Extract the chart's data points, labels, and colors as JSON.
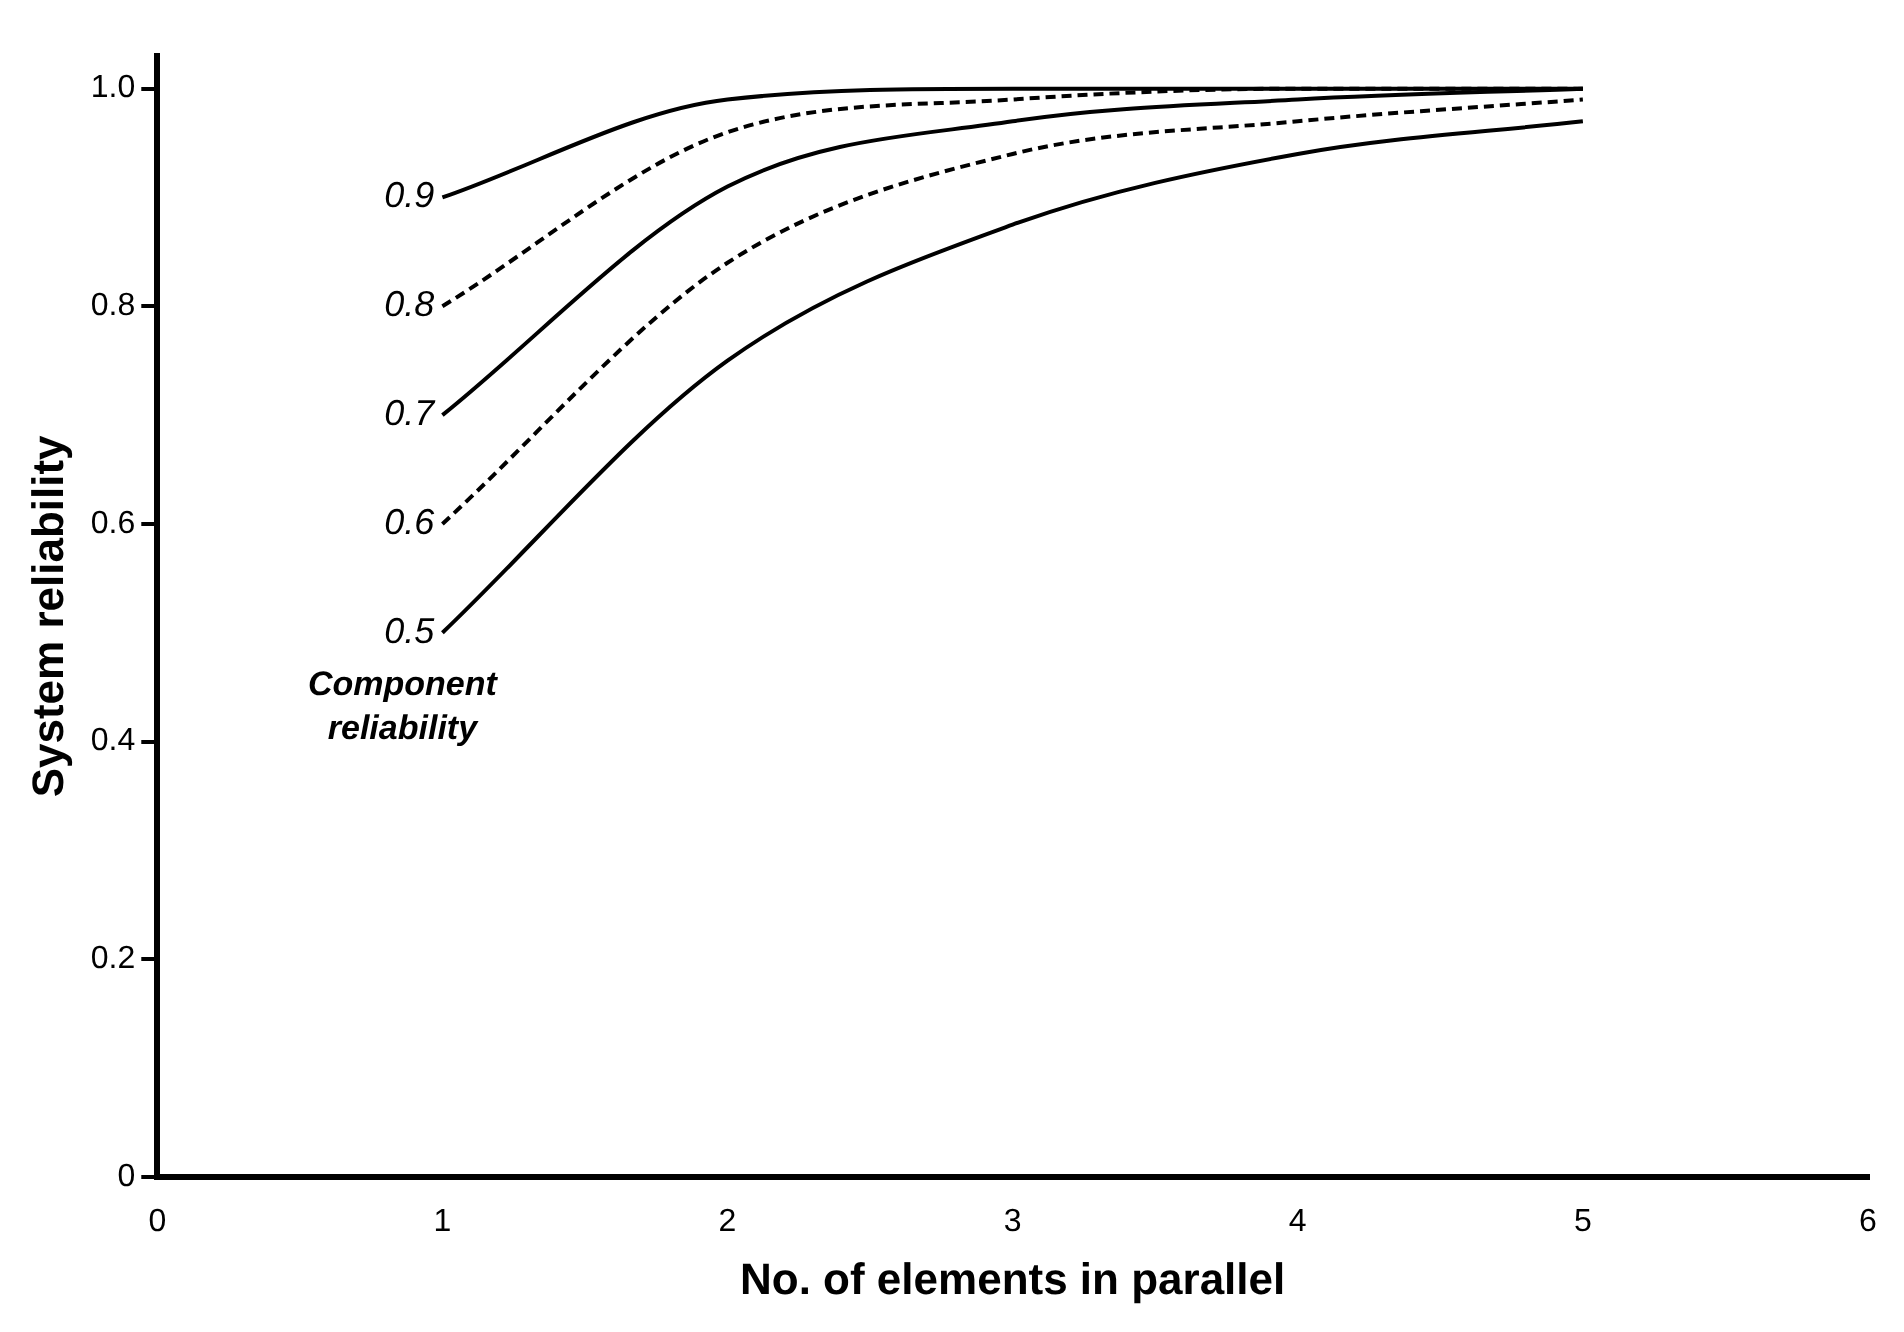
{
  "chart_data": {
    "type": "line",
    "xlabel": "No. of elements in parallel",
    "ylabel": "System reliability",
    "x": [
      1,
      2,
      3,
      4,
      5
    ],
    "series": [
      {
        "name": "0.9",
        "color": "#000000",
        "line_style": "solid",
        "values": [
          0.9,
          0.99,
          1.0,
          1.0,
          1.0
        ]
      },
      {
        "name": "0.8",
        "color": "#000000",
        "line_style": "dashed",
        "values": [
          0.8,
          0.96,
          0.99,
          1.0,
          1.0
        ]
      },
      {
        "name": "0.7",
        "color": "#000000",
        "line_style": "solid",
        "values": [
          0.7,
          0.91,
          0.97,
          0.99,
          1.0
        ]
      },
      {
        "name": "0.6",
        "color": "#000000",
        "line_style": "dashed",
        "values": [
          0.6,
          0.84,
          0.94,
          0.97,
          0.99
        ]
      },
      {
        "name": "0.5",
        "color": "#000000",
        "line_style": "solid",
        "values": [
          0.5,
          0.75,
          0.875,
          0.94,
          0.97
        ]
      }
    ],
    "annotations": [
      "Component reliability"
    ],
    "xlim": [
      0,
      6
    ],
    "xticks": [
      0,
      1,
      2,
      3,
      4,
      5,
      6
    ],
    "ylim": [
      0,
      1.03
    ],
    "yticks": [
      0,
      0.2,
      0.4,
      0.6,
      0.8,
      {
        "value": 1,
        "label": "1.0"
      }
    ],
    "grid": false,
    "legend": false,
    "marker": "none"
  }
}
